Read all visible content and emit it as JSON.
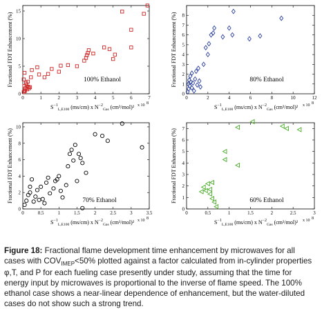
{
  "figure": {
    "common_axis": {
      "xlabel_main": "S",
      "xlabel_sup": "−1",
      "xlabel_sub": "L,E100",
      "xlabel_mid": " (ms/cm) x N",
      "xlabel_mid_sup": "−2",
      "xlabel_mid_sub": "Gas",
      "xlabel_end": " (cm³/mol)²",
      "xlabel_scale": "x 10",
      "xlabel_scale_exp": "8",
      "ylabel": "Fractional FDT Enhancement (%)"
    }
  },
  "chart_data": [
    {
      "type": "scatter",
      "label": "100% Ethanol",
      "color": "#cc2222",
      "marker": "square",
      "xlim": [
        0,
        7
      ],
      "ylim": [
        0,
        16
      ],
      "xticks": [
        0,
        1,
        2,
        3,
        4,
        5,
        6,
        7
      ],
      "yticks": [
        0,
        5,
        10,
        15
      ],
      "points": [
        [
          0.05,
          0.3
        ],
        [
          0.1,
          0.6
        ],
        [
          0.15,
          1.0
        ],
        [
          0.08,
          1.4
        ],
        [
          0.2,
          1.7
        ],
        [
          0.25,
          0.8
        ],
        [
          0.3,
          1.3
        ],
        [
          0.18,
          2.0
        ],
        [
          0.35,
          1.0
        ],
        [
          0.12,
          0.5
        ],
        [
          0.28,
          2.2
        ],
        [
          0.4,
          1.2
        ],
        [
          0.05,
          2.6
        ],
        [
          0.1,
          3.8
        ],
        [
          0.45,
          3.0
        ],
        [
          0.5,
          4.3
        ],
        [
          0.8,
          4.8
        ],
        [
          0.9,
          3.5
        ],
        [
          1.2,
          3.0
        ],
        [
          1.4,
          3.6
        ],
        [
          1.6,
          4.5
        ],
        [
          2.0,
          4.0
        ],
        [
          2.1,
          5.1
        ],
        [
          2.5,
          5.2
        ],
        [
          3.0,
          5.0
        ],
        [
          3.4,
          6.0
        ],
        [
          3.5,
          6.5
        ],
        [
          3.55,
          7.0
        ],
        [
          3.6,
          7.4
        ],
        [
          3.65,
          7.9
        ],
        [
          3.9,
          7.3
        ],
        [
          4.5,
          8.4
        ],
        [
          4.8,
          8.1
        ],
        [
          5.0,
          6.3
        ],
        [
          5.1,
          7.1
        ],
        [
          5.5,
          14.9
        ],
        [
          6.0,
          11.6
        ],
        [
          6.0,
          8.4
        ],
        [
          6.7,
          14.5
        ],
        [
          6.9,
          16.0
        ]
      ]
    },
    {
      "type": "scatter",
      "label": "80% Ethanol",
      "color": "#2a3f9e",
      "marker": "diamond",
      "xlim": [
        0,
        12
      ],
      "ylim": [
        0,
        9
      ],
      "xticks": [
        0,
        2,
        4,
        6,
        8,
        10,
        12
      ],
      "yticks": [
        0,
        1,
        2,
        3,
        4,
        5,
        6,
        7,
        8
      ],
      "points": [
        [
          0.1,
          0.2
        ],
        [
          0.2,
          0.5
        ],
        [
          0.3,
          0.8
        ],
        [
          0.15,
          1.0
        ],
        [
          0.4,
          1.2
        ],
        [
          0.25,
          1.4
        ],
        [
          0.5,
          0.6
        ],
        [
          0.6,
          1.1
        ],
        [
          0.8,
          1.5
        ],
        [
          0.35,
          1.8
        ],
        [
          0.7,
          0.3
        ],
        [
          1.0,
          0.9
        ],
        [
          1.2,
          1.3
        ],
        [
          1.3,
          0.7
        ],
        [
          0.5,
          2.1
        ],
        [
          0.9,
          2.3
        ],
        [
          1.1,
          2.6
        ],
        [
          1.6,
          3.0
        ],
        [
          2.0,
          4.0
        ],
        [
          1.8,
          4.7
        ],
        [
          2.1,
          5.1
        ],
        [
          2.3,
          6.0
        ],
        [
          2.5,
          6.2
        ],
        [
          2.6,
          6.7
        ],
        [
          3.4,
          5.8
        ],
        [
          4.0,
          6.7
        ],
        [
          4.3,
          6.0
        ],
        [
          4.4,
          8.4
        ],
        [
          5.9,
          5.6
        ],
        [
          6.9,
          5.9
        ],
        [
          8.9,
          7.7
        ]
      ]
    },
    {
      "type": "scatter",
      "label": "70% Ethanol",
      "color": "#000000",
      "marker": "circle",
      "xlim": [
        0,
        3.5
      ],
      "ylim": [
        0,
        10.5
      ],
      "xticks": [
        0,
        0.5,
        1,
        1.5,
        2,
        2.5,
        3,
        3.5
      ],
      "xtick_labels": [
        "0",
        "0.5",
        "1",
        "1.5",
        "2",
        "2.5",
        "3",
        "3.5"
      ],
      "yticks": [
        0,
        2,
        4,
        6,
        8,
        10
      ],
      "points": [
        [
          0.05,
          0.5
        ],
        [
          0.1,
          1.0
        ],
        [
          0.15,
          1.7
        ],
        [
          0.2,
          2.7
        ],
        [
          0.25,
          3.6
        ],
        [
          0.2,
          2.0
        ],
        [
          0.3,
          0.9
        ],
        [
          0.35,
          1.5
        ],
        [
          0.4,
          2.3
        ],
        [
          0.45,
          1.1
        ],
        [
          0.5,
          2.7
        ],
        [
          0.55,
          1.2
        ],
        [
          0.6,
          0.7
        ],
        [
          0.65,
          3.2
        ],
        [
          0.7,
          3.8
        ],
        [
          0.75,
          1.9
        ],
        [
          0.85,
          2.5
        ],
        [
          0.9,
          3.4
        ],
        [
          0.95,
          3.6
        ],
        [
          1.0,
          4.0
        ],
        [
          1.05,
          2.2
        ],
        [
          1.1,
          1.4
        ],
        [
          1.2,
          2.9
        ],
        [
          1.25,
          5.2
        ],
        [
          1.3,
          6.7
        ],
        [
          1.35,
          7.2
        ],
        [
          1.4,
          5.9
        ],
        [
          1.45,
          7.8
        ],
        [
          1.5,
          3.4
        ],
        [
          1.55,
          6.7
        ],
        [
          1.6,
          6.2
        ],
        [
          1.65,
          5.6
        ],
        [
          1.65,
          0.1
        ],
        [
          1.75,
          4.4
        ],
        [
          2.0,
          9.1
        ],
        [
          2.2,
          8.9
        ],
        [
          2.35,
          8.3
        ],
        [
          2.75,
          10.4
        ],
        [
          3.3,
          7.5
        ]
      ]
    },
    {
      "type": "scatter",
      "label": "60% Ethanol",
      "color": "#44aa22",
      "marker": "triangle-left",
      "xlim": [
        0,
        3
      ],
      "ylim": [
        0,
        7.5
      ],
      "xticks": [
        0,
        0.5,
        1,
        1.5,
        2,
        2.5,
        3
      ],
      "xtick_labels": [
        "0",
        "0.5",
        "1",
        "1.5",
        "2",
        "2.5",
        "3"
      ],
      "yticks": [
        0,
        1,
        2,
        3,
        4,
        5,
        6,
        7
      ],
      "points": [
        [
          0.35,
          1.5
        ],
        [
          0.4,
          1.9
        ],
        [
          0.45,
          1.6
        ],
        [
          0.5,
          2.2
        ],
        [
          0.55,
          1.7
        ],
        [
          0.6,
          2.3
        ],
        [
          0.55,
          1.3
        ],
        [
          0.6,
          0.9
        ],
        [
          0.65,
          0.6
        ],
        [
          0.7,
          0.2
        ],
        [
          0.9,
          4.3
        ],
        [
          0.9,
          5.0
        ],
        [
          1.2,
          3.8
        ],
        [
          1.2,
          7.1
        ],
        [
          1.55,
          7.6
        ],
        [
          2.25,
          7.2
        ],
        [
          2.35,
          7.0
        ],
        [
          2.65,
          6.9
        ]
      ]
    }
  ],
  "caption": {
    "label": "Figure 18:",
    "text_before_sub": " Fractional flame development time enhancement by microwaves for all cases with COV",
    "sub": "IMEP",
    "text_after_sub": "<50% plotted against a factor calculated from in-cylinder properties φ,T, and P for each fueling case presently under study, assuming that the time for energy input by microwaves is proportional to the inverse of flame speed. The 100% ethanol case shows a near-linear dependence of enhancement, but the water-diluted cases do not show such a strong trend."
  }
}
